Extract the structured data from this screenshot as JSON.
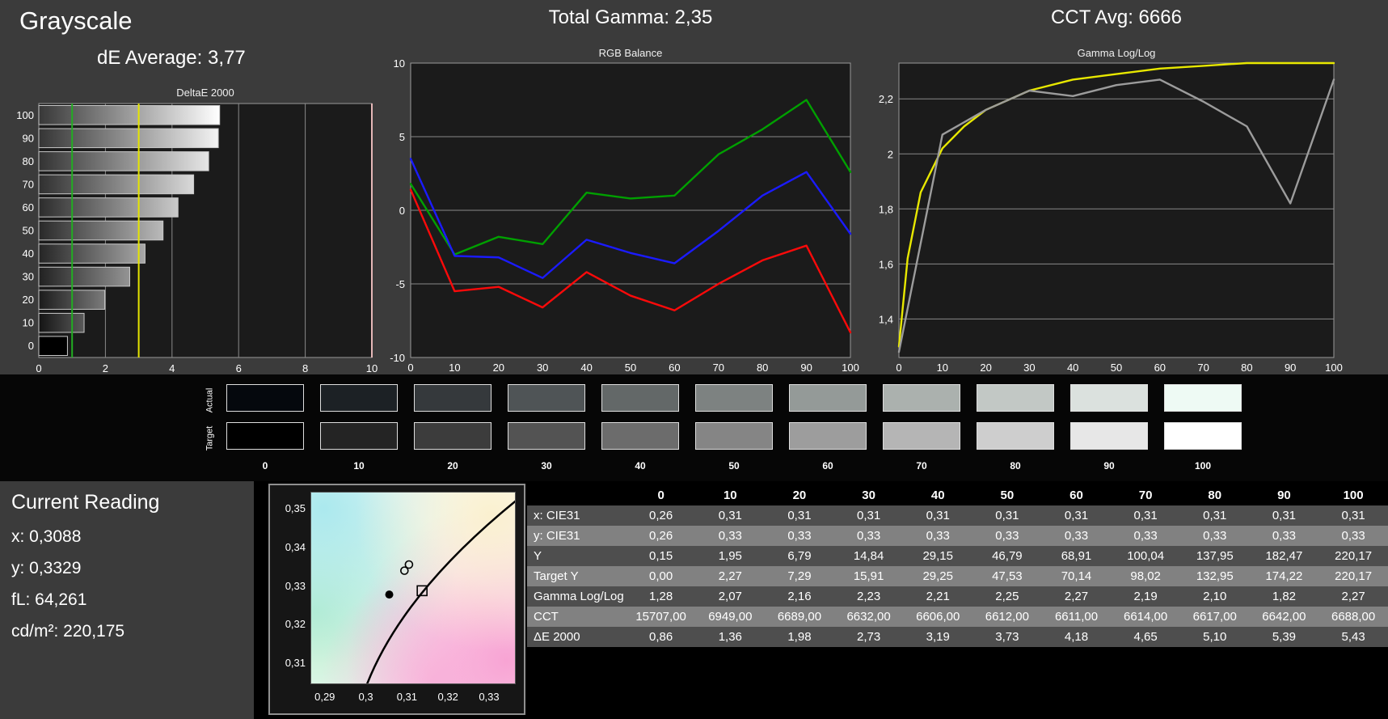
{
  "panel": {
    "title": "Grayscale",
    "de_average": "dE Average: 3,77",
    "total_gamma": "Total Gamma: 2,35",
    "cct_avg": "CCT Avg: 6666"
  },
  "chart_data": [
    {
      "name": "deltae-2000",
      "type": "bar",
      "orientation": "horizontal",
      "title": "DeltaE 2000",
      "categories": [
        "100",
        "90",
        "80",
        "70",
        "60",
        "50",
        "40",
        "30",
        "20",
        "10",
        "0"
      ],
      "values": [
        5.43,
        5.39,
        5.1,
        4.65,
        4.18,
        3.73,
        3.19,
        2.73,
        1.98,
        1.36,
        0.86
      ],
      "xlim": [
        0,
        10
      ],
      "xticks": [
        0,
        2,
        4,
        6,
        8,
        10
      ],
      "reference_lines": [
        {
          "x": 1,
          "color": "#22ad22"
        },
        {
          "x": 3,
          "color": "#e4e400"
        },
        {
          "x": 10,
          "color": "#e6b8b8"
        }
      ]
    },
    {
      "name": "rgb-balance",
      "type": "line",
      "title": "RGB Balance",
      "xlim": [
        0,
        100
      ],
      "xticks": [
        0,
        10,
        20,
        30,
        40,
        50,
        60,
        70,
        80,
        90,
        100
      ],
      "ylim": [
        -10,
        10
      ],
      "yticks": [
        10,
        5,
        0,
        -5,
        -10
      ],
      "ytick_labels": [
        "10",
        "5",
        "0",
        "-5",
        "-10"
      ],
      "series": [
        {
          "name": "green-balance",
          "color": "#00a000",
          "values": [
            1.8,
            -3.0,
            -1.8,
            -2.3,
            1.2,
            0.8,
            1.0,
            3.8,
            5.5,
            7.5,
            2.6
          ]
        },
        {
          "name": "blue-balance",
          "color": "#1b1bff",
          "values": [
            3.5,
            -3.1,
            -3.2,
            -4.6,
            -2.0,
            -2.9,
            -3.6,
            -1.4,
            1.0,
            2.6,
            -1.6
          ]
        },
        {
          "name": "red-balance",
          "color": "#fb0a0a",
          "values": [
            1.4,
            -5.5,
            -5.2,
            -6.6,
            -4.2,
            -5.8,
            -6.8,
            -5.0,
            -3.4,
            -2.4,
            -8.3
          ]
        }
      ]
    },
    {
      "name": "gamma-loglog",
      "type": "line",
      "title": "Gamma Log/Log",
      "xlim": [
        0,
        100
      ],
      "xticks": [
        0,
        10,
        20,
        30,
        40,
        50,
        60,
        70,
        80,
        90,
        100
      ],
      "ylim": [
        1.26,
        2.33
      ],
      "yticks": [
        2.2,
        2.0,
        1.8,
        1.6,
        1.4
      ],
      "ytick_labels": [
        "2,2",
        "2",
        "1,8",
        "1,6",
        "1,4"
      ],
      "series": [
        {
          "name": "target-gamma",
          "color": "#e8e800",
          "x": [
            0,
            2,
            5,
            10,
            15,
            20,
            30,
            40,
            50,
            60,
            70,
            80,
            90,
            100
          ],
          "values": [
            1.3,
            1.62,
            1.86,
            2.02,
            2.1,
            2.16,
            2.23,
            2.27,
            2.29,
            2.31,
            2.32,
            2.33,
            2.33,
            2.33
          ]
        },
        {
          "name": "measured-gamma",
          "color": "#9c9c9c",
          "x": [
            0,
            10,
            20,
            30,
            40,
            50,
            60,
            70,
            80,
            90,
            100
          ],
          "values": [
            1.28,
            2.07,
            2.16,
            2.23,
            2.21,
            2.25,
            2.27,
            2.19,
            2.1,
            1.82,
            2.27
          ]
        }
      ]
    }
  ],
  "swatches": {
    "row_labels": [
      "Actual",
      "Target"
    ],
    "level_labels": [
      "0",
      "10",
      "20",
      "30",
      "40",
      "50",
      "60",
      "70",
      "80",
      "90",
      "100"
    ],
    "actual_colors": [
      "#05080d",
      "#1c2125",
      "#35393c",
      "#4f5456",
      "#636868",
      "#7d8281",
      "#949a98",
      "#abb1ae",
      "#c2c8c5",
      "#dbe1de",
      "#eefaf4"
    ],
    "target_colors": [
      "#000000",
      "#242424",
      "#3c3c3c",
      "#535353",
      "#6c6c6c",
      "#858585",
      "#9d9d9d",
      "#b5b5b5",
      "#cecece",
      "#e7e7e7",
      "#ffffff"
    ]
  },
  "current_reading": {
    "title": "Current Reading",
    "x": "x: 0,3088",
    "y": "y: 0,3329",
    "fl": "fL: 64,261",
    "cdm2": "cd/m²: 220,175"
  },
  "cie_diagram": {
    "xrange": [
      0.2865,
      0.3365
    ],
    "yrange": [
      0.3045,
      0.3545
    ],
    "xtick_values": [
      0.29,
      0.3,
      0.31,
      0.32,
      0.33
    ],
    "xtick_labels": [
      "0,29",
      "0,3",
      "0,31",
      "0,32",
      "0,33"
    ],
    "ytick_values": [
      0.35,
      0.34,
      0.33,
      0.32,
      0.31
    ],
    "ytick_labels": [
      "0,35",
      "0,34",
      "0,33",
      "0,32",
      "0,31"
    ],
    "locus_line": [
      [
        0.3,
        0.3045
      ],
      [
        0.3135,
        0.3285
      ],
      [
        0.3365,
        0.3525
      ]
    ],
    "markers": [
      {
        "type": "dot",
        "x": 0.3055,
        "y": 0.328
      },
      {
        "type": "square",
        "x": 0.3135,
        "y": 0.329
      },
      {
        "type": "circle",
        "x": 0.3092,
        "y": 0.3342
      },
      {
        "type": "circle",
        "x": 0.3103,
        "y": 0.3358
      }
    ]
  },
  "table": {
    "columns": [
      "",
      "0",
      "10",
      "20",
      "30",
      "40",
      "50",
      "60",
      "70",
      "80",
      "90",
      "100"
    ],
    "rows": [
      {
        "label": "x: CIE31",
        "values": [
          "0,26",
          "0,31",
          "0,31",
          "0,31",
          "0,31",
          "0,31",
          "0,31",
          "0,31",
          "0,31",
          "0,31",
          "0,31"
        ]
      },
      {
        "label": "y: CIE31",
        "values": [
          "0,26",
          "0,33",
          "0,33",
          "0,33",
          "0,33",
          "0,33",
          "0,33",
          "0,33",
          "0,33",
          "0,33",
          "0,33"
        ]
      },
      {
        "label": "Y",
        "values": [
          "0,15",
          "1,95",
          "6,79",
          "14,84",
          "29,15",
          "46,79",
          "68,91",
          "100,04",
          "137,95",
          "182,47",
          "220,17"
        ]
      },
      {
        "label": "Target Y",
        "values": [
          "0,00",
          "2,27",
          "7,29",
          "15,91",
          "29,25",
          "47,53",
          "70,14",
          "98,02",
          "132,95",
          "174,22",
          "220,17"
        ]
      },
      {
        "label": "Gamma Log/Log",
        "values": [
          "1,28",
          "2,07",
          "2,16",
          "2,23",
          "2,21",
          "2,25",
          "2,27",
          "2,19",
          "2,10",
          "1,82",
          "2,27"
        ]
      },
      {
        "label": "CCT",
        "values": [
          "15707,00",
          "6949,00",
          "6689,00",
          "6632,00",
          "6606,00",
          "6612,00",
          "6611,00",
          "6614,00",
          "6617,00",
          "6642,00",
          "6688,00"
        ]
      },
      {
        "label": "ΔE 2000",
        "values": [
          "0,86",
          "1,36",
          "1,98",
          "2,73",
          "3,19",
          "3,73",
          "4,18",
          "4,65",
          "5,10",
          "5,39",
          "5,43"
        ]
      }
    ]
  }
}
